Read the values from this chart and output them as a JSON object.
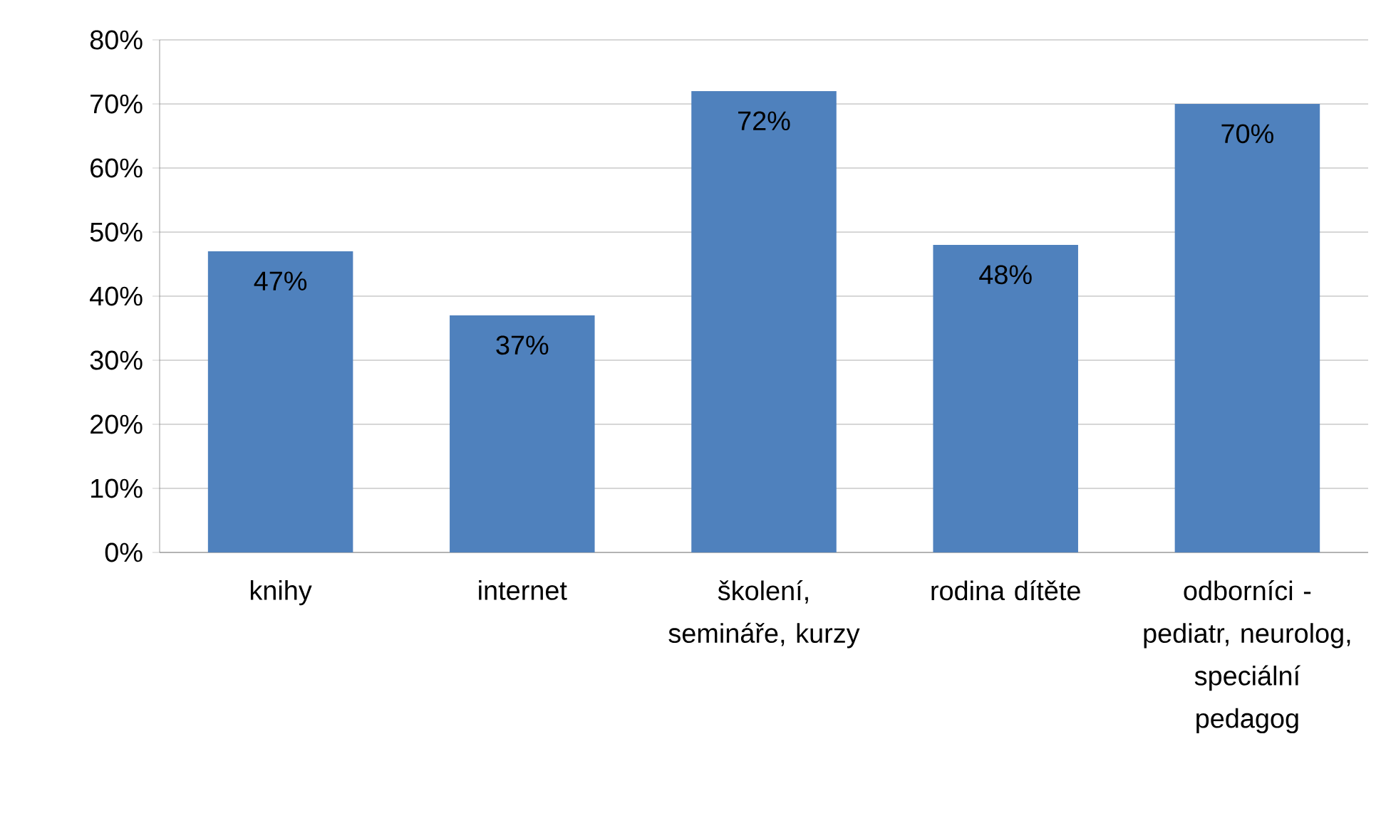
{
  "chart_data": {
    "type": "bar",
    "categories": [
      "knihy",
      "internet",
      "školení, semináře, kurzy",
      "rodina dítěte",
      "odborníci - pediatr, neurolog, speciální pedagog"
    ],
    "values": [
      47,
      37,
      72,
      48,
      70
    ],
    "color": "#4f81bd",
    "data_labels": true,
    "value_labels": [
      "47%",
      "37%",
      "72%",
      "48%",
      "70%"
    ],
    "ylim": [
      0,
      80
    ],
    "yticks": [
      {
        "value": 0,
        "label": "0%"
      },
      {
        "value": 10,
        "label": "10%"
      },
      {
        "value": 20,
        "label": "20%"
      },
      {
        "value": 30,
        "label": "30%"
      },
      {
        "value": 40,
        "label": "40%"
      },
      {
        "value": 50,
        "label": "50%"
      },
      {
        "value": 60,
        "label": "60%"
      },
      {
        "value": 70,
        "label": "70%"
      },
      {
        "value": 80,
        "label": "80%"
      }
    ],
    "grid": "y"
  }
}
